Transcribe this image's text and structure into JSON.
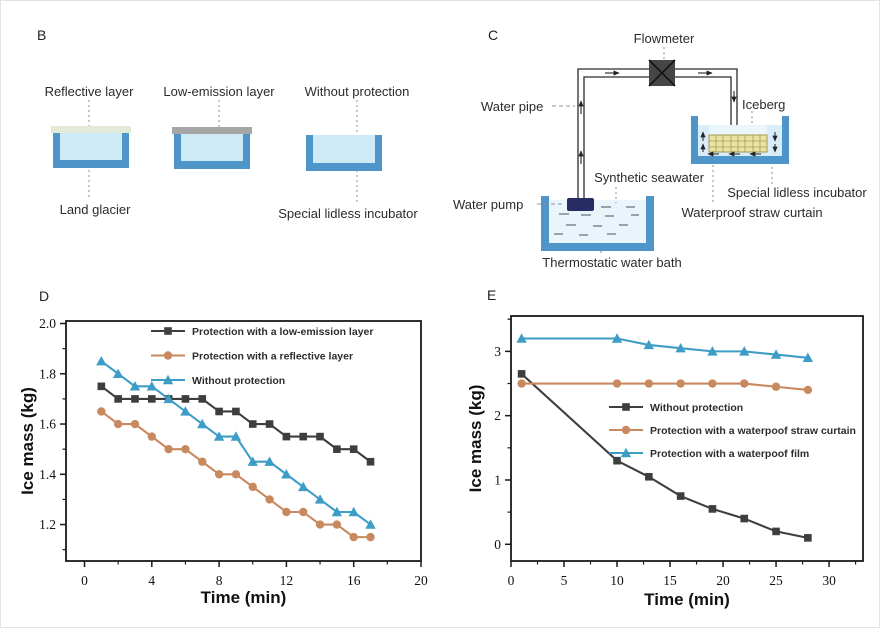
{
  "panels": {
    "B": {
      "letter": "B",
      "labels": {
        "reflective_layer": "Reflective layer",
        "low_emission_layer": "Low-emission layer",
        "without_protection": "Without protection",
        "land_glacier": "Land glacier",
        "special_lidless_incubator": "Special lidless incubator"
      },
      "colors": {
        "container_wall": "#4e96ca",
        "container_water": "#cfeaf7",
        "reflective_strip": "#e3ead8",
        "low_emission_strip": "#a6a6a6"
      }
    },
    "C": {
      "letter": "C",
      "labels": {
        "flowmeter": "Flowmeter",
        "water_pipe": "Water pipe",
        "iceberg": "Iceberg",
        "synthetic_seawater": "Synthetic seawater",
        "special_lidless_incubator": "Special lidless incubator",
        "water_pump": "Water pump",
        "waterproof_straw_curtain": "Waterproof straw curtain",
        "thermostatic_water_bath": "Thermostatic water bath"
      },
      "colors": {
        "wall": "#4e96ca",
        "water": "#e9f4fb",
        "incubator_water": "#d8edf9",
        "iceberg": "#eaf6fc",
        "straw_curtain": "#e9e3a7",
        "pump": "#272c63",
        "flowmeter_box": "#464646"
      }
    },
    "D": {
      "letter": "D"
    },
    "E": {
      "letter": "E"
    }
  },
  "chart_data": [
    {
      "id": "chartD",
      "panel": "D",
      "type": "line",
      "xlabel": "Time (min)",
      "ylabel": "Ice mass (kg)",
      "xlim": [
        -1.1,
        20
      ],
      "ylim": [
        1.055,
        2.01
      ],
      "xticks": [
        0,
        4,
        8,
        12,
        16,
        20
      ],
      "xtick_labels": [
        "0",
        "4",
        "8",
        "12",
        "16",
        "20"
      ],
      "yticks": [
        1.2,
        1.4,
        1.6,
        1.8,
        2.0
      ],
      "ytick_labels": [
        "1.2",
        "1.4",
        "1.6",
        "1.8",
        "2.0"
      ],
      "grid": false,
      "legend_position": "top-center-inside",
      "x": [
        1,
        2,
        3,
        4,
        5,
        6,
        7,
        8,
        9,
        10,
        11,
        12,
        13,
        14,
        15,
        16,
        17
      ],
      "series": [
        {
          "name": "Protection with a low-emission layer",
          "marker": "square",
          "color": "#3e3e3e",
          "values": [
            1.75,
            1.7,
            1.7,
            1.7,
            1.7,
            1.7,
            1.7,
            1.65,
            1.65,
            1.6,
            1.6,
            1.55,
            1.55,
            1.55,
            1.5,
            1.5,
            1.45
          ]
        },
        {
          "name": "Protection with a reflective layer",
          "marker": "circle",
          "color": "#c9895f",
          "values": [
            1.65,
            1.6,
            1.6,
            1.55,
            1.5,
            1.5,
            1.45,
            1.4,
            1.4,
            1.35,
            1.3,
            1.25,
            1.25,
            1.2,
            1.2,
            1.15,
            1.15
          ]
        },
        {
          "name": "Without protection",
          "marker": "triangle",
          "color": "#3d9dc6",
          "values": [
            1.85,
            1.8,
            1.75,
            1.75,
            1.7,
            1.65,
            1.6,
            1.55,
            1.55,
            1.45,
            1.45,
            1.4,
            1.35,
            1.3,
            1.25,
            1.25,
            1.2
          ]
        }
      ]
    },
    {
      "id": "chartE",
      "panel": "E",
      "type": "line",
      "xlabel": "Time (min)",
      "ylabel": "Ice mass (kg)",
      "xlim": [
        0,
        33.2
      ],
      "ylim": [
        -0.26,
        3.55
      ],
      "xticks": [
        0,
        5,
        10,
        15,
        20,
        25,
        30
      ],
      "xtick_labels": [
        "0",
        "5",
        "10",
        "15",
        "20",
        "25",
        "30"
      ],
      "yticks": [
        0,
        1,
        2,
        3
      ],
      "ytick_labels": [
        "0",
        "1",
        "2",
        "3"
      ],
      "grid": false,
      "legend_position": "middle-inside",
      "x": [
        1,
        10,
        13,
        16,
        19,
        22,
        25,
        28
      ],
      "series": [
        {
          "name": "Without protection",
          "marker": "square",
          "color": "#3e3e3e",
          "values": [
            2.65,
            1.3,
            1.05,
            0.75,
            0.55,
            0.4,
            0.2,
            0.1
          ]
        },
        {
          "name": "Protection with a waterpoof straw curtain",
          "marker": "circle",
          "color": "#c9895f",
          "values": [
            2.5,
            2.5,
            2.5,
            2.5,
            2.5,
            2.5,
            2.45,
            2.4
          ]
        },
        {
          "name": "Protection with a waterpoof film",
          "marker": "triangle",
          "color": "#3d9dc6",
          "values": [
            3.2,
            3.2,
            3.1,
            3.05,
            3.0,
            3.0,
            2.95,
            2.9
          ]
        }
      ]
    }
  ]
}
